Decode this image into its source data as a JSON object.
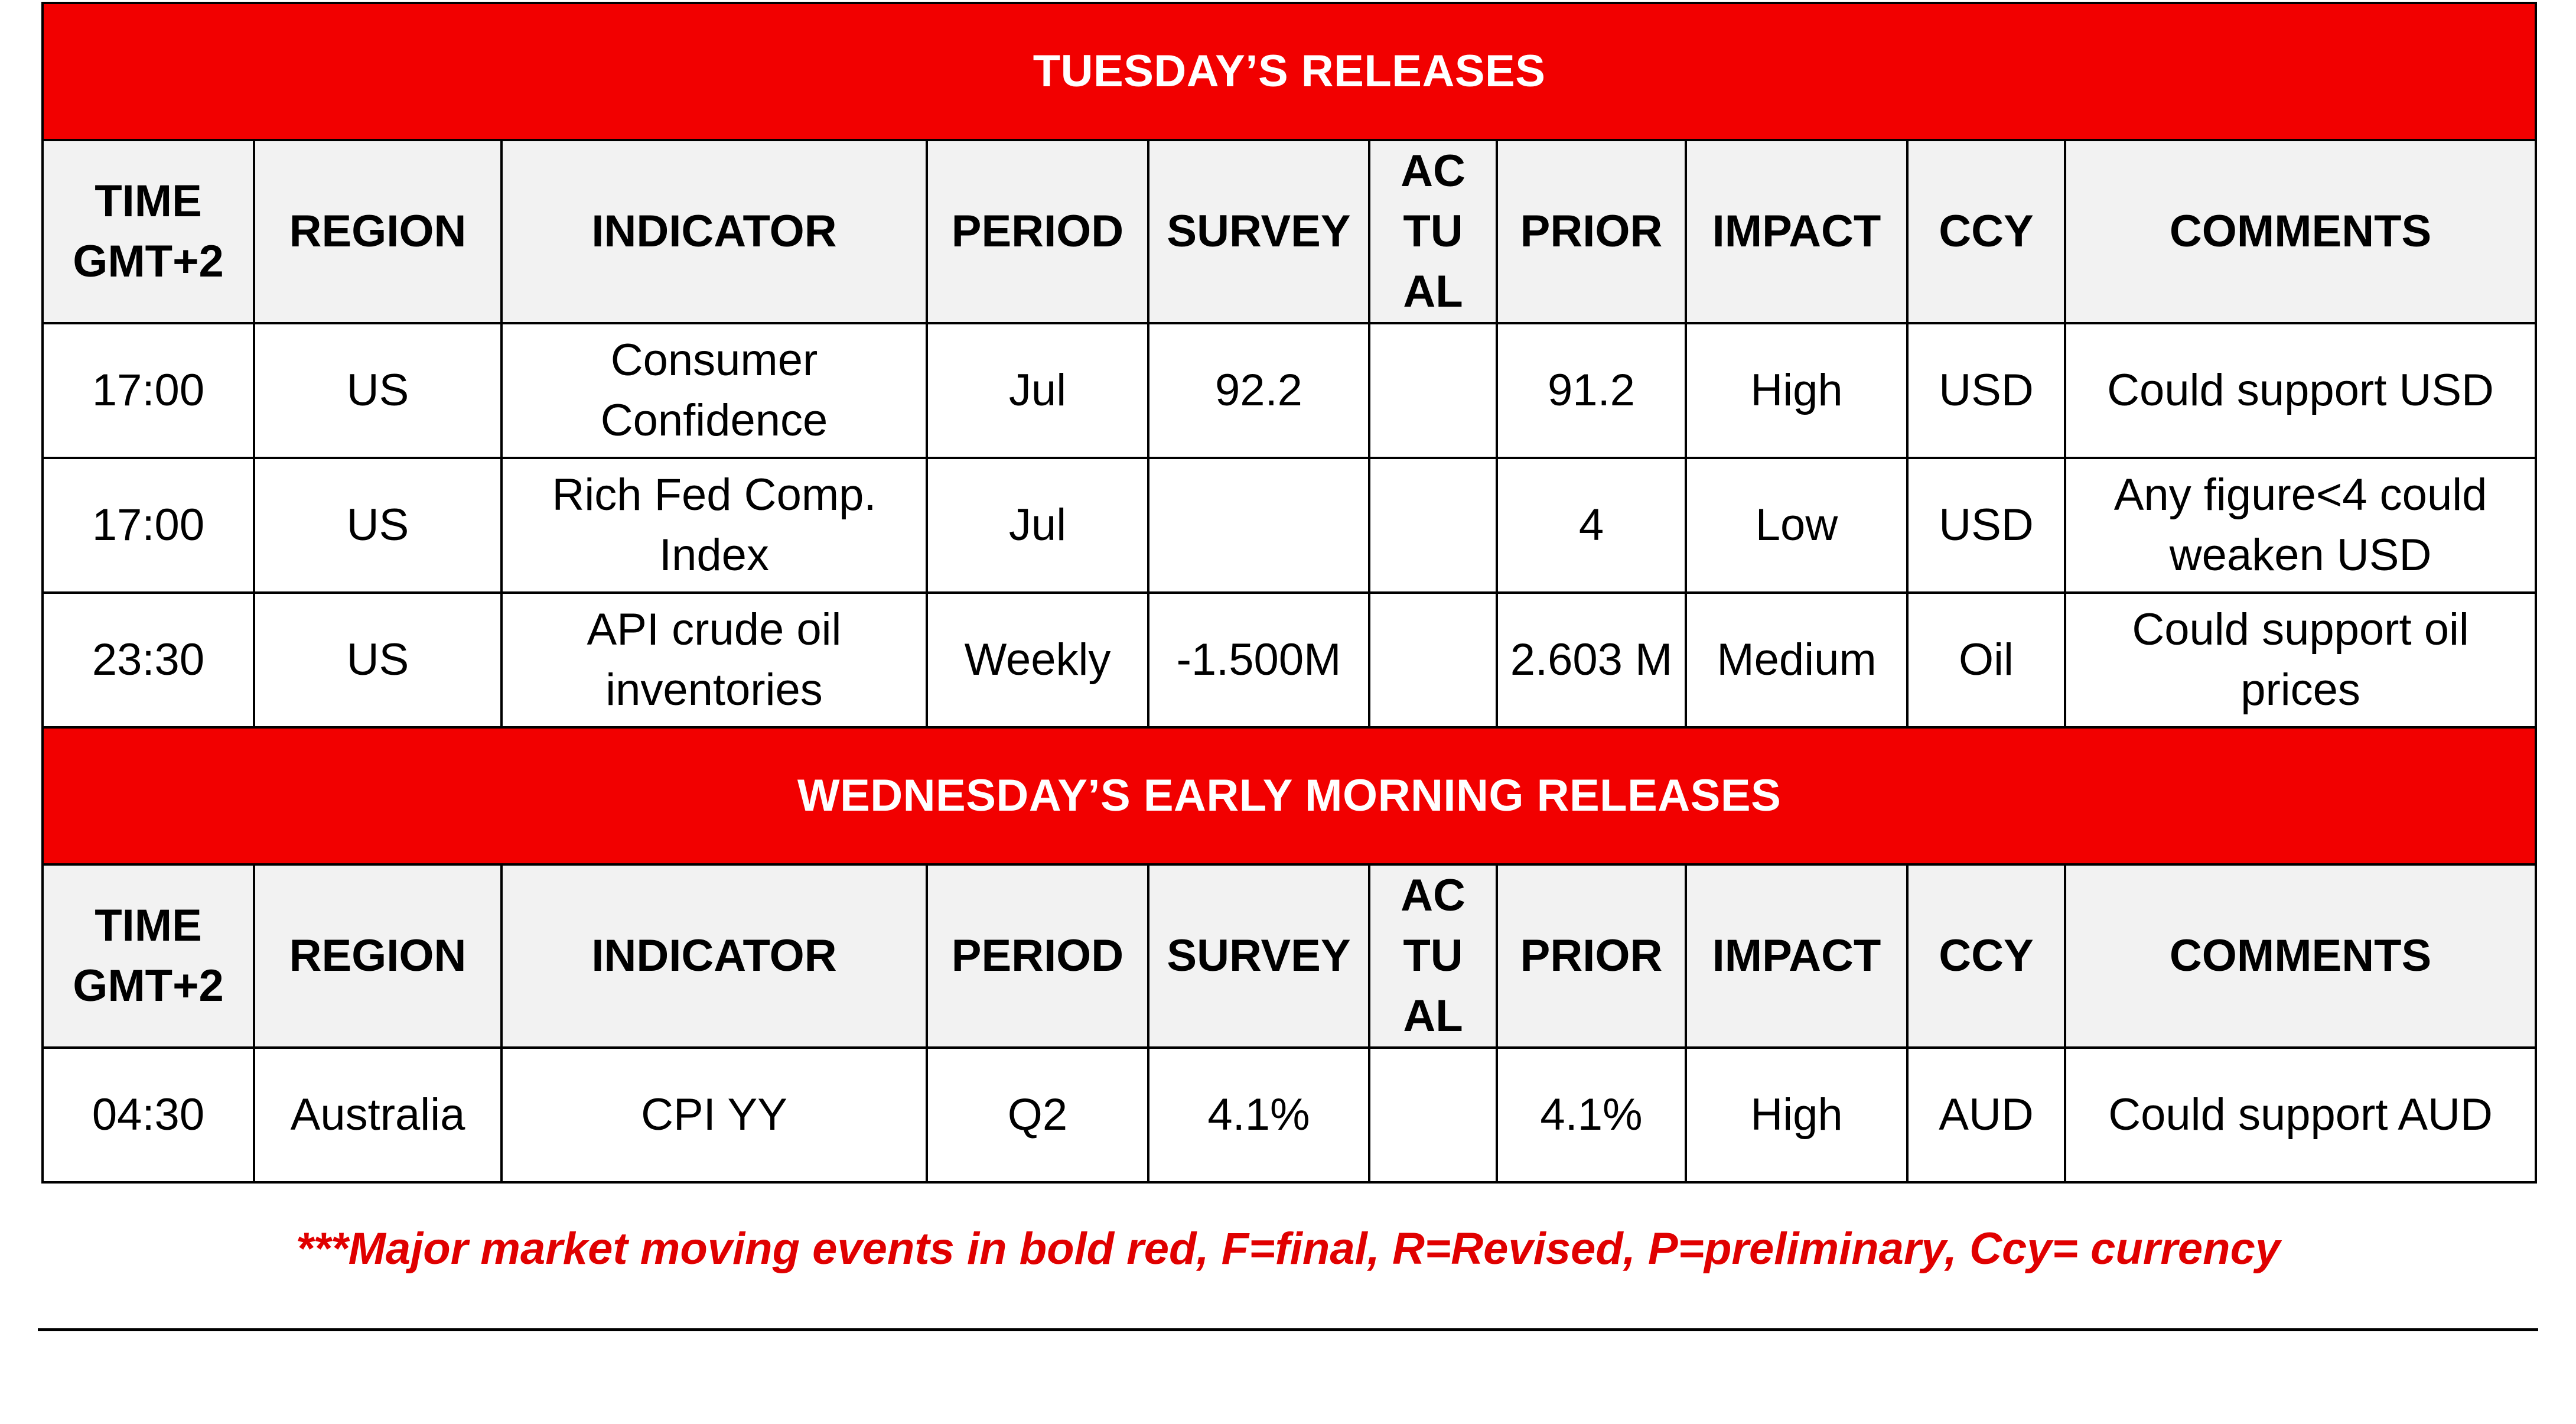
{
  "tuesday": {
    "title": "TUESDAY’S RELEASES",
    "headers": [
      "TIME GMT+2",
      "REGION",
      "INDICATOR",
      "PERIOD",
      "SURVEY",
      "AC TU AL",
      "PRIOR",
      "IMPACT",
      "CCY",
      "COMMENTS"
    ],
    "rows": [
      [
        "17:00",
        "US",
        "Consumer Confidence",
        "Jul",
        "92.2",
        "",
        "91.2",
        "High",
        "USD",
        "Could support USD"
      ],
      [
        "17:00",
        "US",
        "Rich Fed Comp. Index",
        "Jul",
        "",
        "",
        "4",
        "Low",
        "USD",
        "Any figure<4 could weaken USD"
      ],
      [
        "23:30",
        "US",
        "API crude oil inventories",
        "Weekly",
        "-1.500M",
        "",
        "2.603 M",
        "Medium",
        "Oil",
        "Could support oil prices"
      ]
    ]
  },
  "wednesday": {
    "title": "WEDNESDAY’S EARLY MORNING RELEASES",
    "headers": [
      "TIME GMT+2",
      "REGION",
      "INDICATOR",
      "PERIOD",
      "SURVEY",
      "AC TU AL",
      "PRIOR",
      "IMPACT",
      "CCY",
      "COMMENTS"
    ],
    "rows": [
      [
        "04:30",
        "Australia",
        "CPI YY",
        "Q2",
        "4.1%",
        "",
        "4.1%",
        "High",
        "AUD",
        "Could support AUD"
      ]
    ]
  },
  "footnote": "***Major market moving events in bold red, F=final, R=Revised, P=preliminary, Ccy= currency",
  "colors": {
    "banner": "#f20000",
    "header_bg": "#f2f2f2",
    "footnote": "#e00000"
  }
}
